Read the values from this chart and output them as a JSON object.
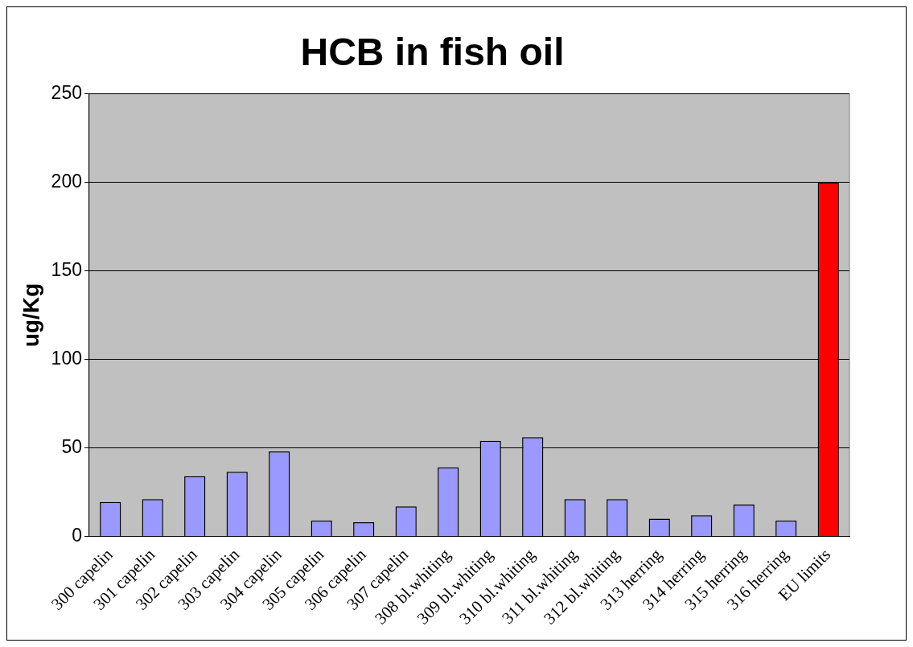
{
  "chart_data": {
    "type": "bar",
    "title": "HCB in fish oil",
    "ylabel": "ug/Kg",
    "categories": [
      "300 capelin",
      "301 capelin",
      "302 capelin",
      "303 capelin",
      "304 capelin",
      "305 capelin",
      "306 capelin",
      "307 capelin",
      "308 bl.whiting",
      "309 bl.whiting",
      "310 bl.whiting",
      "311 bl.whiting",
      "312 bl.whiting",
      "313 herring",
      "314 herring",
      "315 herring",
      "316 herring",
      "EU limits"
    ],
    "values": [
      19.5,
      21,
      34,
      36.5,
      48,
      9,
      8,
      17,
      39,
      54,
      56,
      21,
      21,
      10,
      12,
      18,
      9,
      200
    ],
    "colors": [
      "#9999ff",
      "#9999ff",
      "#9999ff",
      "#9999ff",
      "#9999ff",
      "#9999ff",
      "#9999ff",
      "#9999ff",
      "#9999ff",
      "#9999ff",
      "#9999ff",
      "#9999ff",
      "#9999ff",
      "#9999ff",
      "#9999ff",
      "#9999ff",
      "#9999ff",
      "#ff0000"
    ],
    "ylim": [
      0,
      250
    ],
    "yticks": [
      0,
      50,
      100,
      150,
      200,
      250
    ],
    "grid": "y",
    "legend": false
  }
}
